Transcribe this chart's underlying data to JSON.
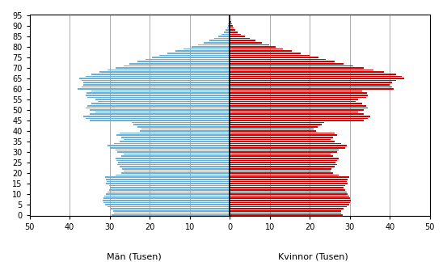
{
  "xlabel_left": "Män (Tusen)",
  "xlabel_right": "Kvinnor (Tusen)",
  "xlim": 50,
  "male_color": "#6baed6",
  "female_color": "#cc0000",
  "bg_color": "#ffffff",
  "bar_height": 0.65,
  "tick_fontsize": 7,
  "label_fontsize": 8,
  "male": [
    29.5,
    29.0,
    29.2,
    29.8,
    30.5,
    31.2,
    31.5,
    31.8,
    31.6,
    31.4,
    31.0,
    30.5,
    30.2,
    30.0,
    30.2,
    31.0,
    30.8,
    31.0,
    31.2,
    28.5,
    27.0,
    26.5,
    26.8,
    27.5,
    28.0,
    27.8,
    28.2,
    28.5,
    27.0,
    26.5,
    28.0,
    28.5,
    30.0,
    30.5,
    29.0,
    27.5,
    26.5,
    27.0,
    28.2,
    27.5,
    22.5,
    22.0,
    23.0,
    24.0,
    24.5,
    35.0,
    36.0,
    36.5,
    35.0,
    33.5,
    35.0,
    36.0,
    35.5,
    34.5,
    33.0,
    33.5,
    35.5,
    36.0,
    35.8,
    34.5,
    38.0,
    37.0,
    36.5,
    36.5,
    37.0,
    37.5,
    36.0,
    34.5,
    32.5,
    30.5,
    28.5,
    26.5,
    25.0,
    23.0,
    21.0,
    19.5,
    17.5,
    15.5,
    13.5,
    11.5,
    9.5,
    8.0,
    6.5,
    5.0,
    3.8,
    2.8,
    2.0,
    1.4,
    1.0,
    0.7,
    0.5,
    0.35,
    0.22,
    0.14,
    0.08,
    0.04
  ],
  "female": [
    28.2,
    27.8,
    27.8,
    28.5,
    29.2,
    29.8,
    30.0,
    30.2,
    30.0,
    29.8,
    29.5,
    29.2,
    28.8,
    28.5,
    28.8,
    29.5,
    29.2,
    29.5,
    29.8,
    27.2,
    25.8,
    25.2,
    25.5,
    26.2,
    26.8,
    26.5,
    26.8,
    27.2,
    25.8,
    25.2,
    26.8,
    27.2,
    28.8,
    29.2,
    27.8,
    26.2,
    25.2,
    25.8,
    26.8,
    26.2,
    21.5,
    21.0,
    22.0,
    23.0,
    23.5,
    33.5,
    34.5,
    35.0,
    33.5,
    32.0,
    33.5,
    34.5,
    34.0,
    33.0,
    31.5,
    32.0,
    34.0,
    34.5,
    34.2,
    33.0,
    41.0,
    40.5,
    40.0,
    40.5,
    41.5,
    43.5,
    43.0,
    41.5,
    38.5,
    36.0,
    33.5,
    30.8,
    28.5,
    26.2,
    24.0,
    22.2,
    20.0,
    17.8,
    15.5,
    13.2,
    11.5,
    9.8,
    8.0,
    6.5,
    5.0,
    3.8,
    2.8,
    2.0,
    1.4,
    1.0,
    0.75,
    0.55,
    0.38,
    0.25,
    0.15,
    0.08
  ],
  "ytick_positions": [
    0,
    5,
    10,
    15,
    20,
    25,
    30,
    35,
    40,
    45,
    50,
    55,
    60,
    65,
    70,
    75,
    80,
    85,
    90,
    95
  ],
  "xtick_vals": [
    -50,
    -40,
    -30,
    -20,
    -10,
    0,
    10,
    20,
    30,
    40,
    50
  ]
}
